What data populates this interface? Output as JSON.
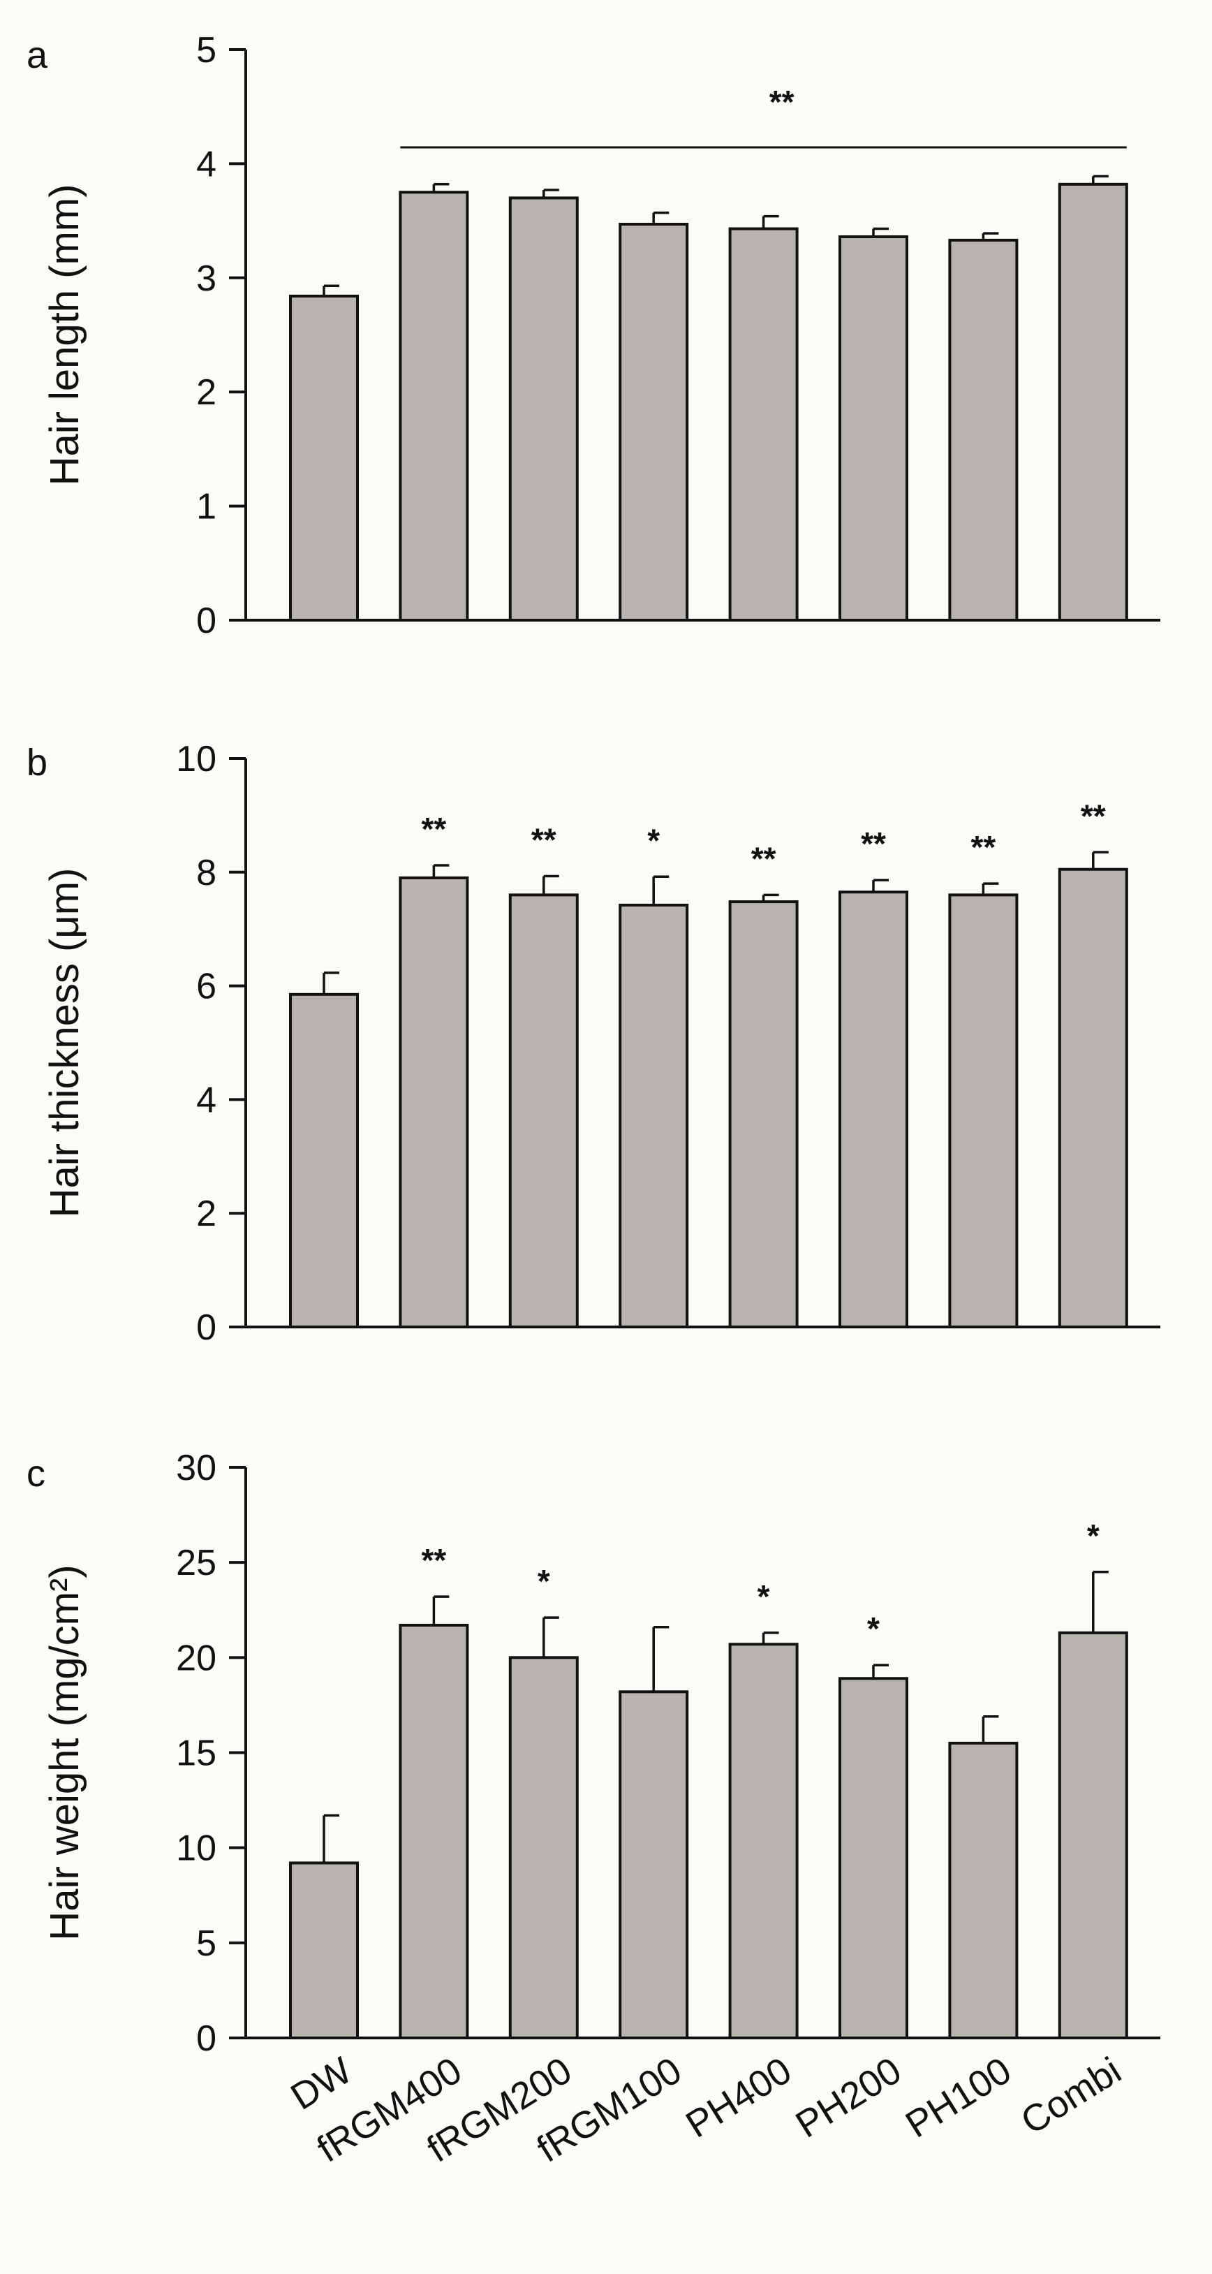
{
  "categories": [
    "DW",
    "fRGM400",
    "fRGM200",
    "fRGM100",
    "PH400",
    "PH200",
    "PH100",
    "Combi"
  ],
  "colors": {
    "bar": "#b7b3af",
    "stroke": "#111111",
    "background": "#fcfbf8"
  },
  "chart_data": [
    {
      "type": "bar",
      "panel": "a",
      "ylabel": "Hair length (mm)",
      "ylim": [
        0,
        5
      ],
      "yticks": [
        0,
        1,
        2,
        3,
        4,
        5
      ],
      "categories": [
        "DW",
        "fRGM400",
        "fRGM200",
        "fRGM100",
        "PH400",
        "PH200",
        "PH100",
        "Combi"
      ],
      "values": [
        2.84,
        3.75,
        3.7,
        3.47,
        3.43,
        3.36,
        3.33,
        3.82
      ],
      "errors": [
        0.09,
        0.07,
        0.07,
        0.1,
        0.11,
        0.07,
        0.06,
        0.07
      ],
      "significance": [
        "",
        "",
        "",
        "",
        "",
        "",
        "",
        ""
      ],
      "bracket": {
        "label": "**",
        "from": 1,
        "to": 7
      }
    },
    {
      "type": "bar",
      "panel": "b",
      "ylabel": "Hair thickness (μm)",
      "ylim": [
        0,
        10
      ],
      "yticks": [
        0,
        2,
        4,
        6,
        8,
        10
      ],
      "categories": [
        "DW",
        "fRGM400",
        "fRGM200",
        "fRGM100",
        "PH400",
        "PH200",
        "PH100",
        "Combi"
      ],
      "values": [
        5.85,
        7.9,
        7.6,
        7.42,
        7.48,
        7.65,
        7.6,
        8.05
      ],
      "errors": [
        0.38,
        0.22,
        0.33,
        0.5,
        0.12,
        0.21,
        0.2,
        0.3
      ],
      "significance": [
        "",
        "**",
        "**",
        "*",
        "**",
        "**",
        "**",
        "**"
      ]
    },
    {
      "type": "bar",
      "panel": "c",
      "ylabel": "Hair weight (mg/cm²)",
      "ylim": [
        0,
        30
      ],
      "yticks": [
        0,
        5,
        10,
        15,
        20,
        25,
        30
      ],
      "categories": [
        "DW",
        "fRGM400",
        "fRGM200",
        "fRGM100",
        "PH400",
        "PH200",
        "PH100",
        "Combi"
      ],
      "values": [
        9.2,
        21.7,
        20.0,
        18.2,
        20.7,
        18.9,
        15.5,
        21.3
      ],
      "errors": [
        2.5,
        1.5,
        2.1,
        3.4,
        0.6,
        0.7,
        1.4,
        3.2
      ],
      "significance": [
        "",
        "**",
        "*",
        "",
        "*",
        "*",
        "",
        "*"
      ]
    }
  ]
}
